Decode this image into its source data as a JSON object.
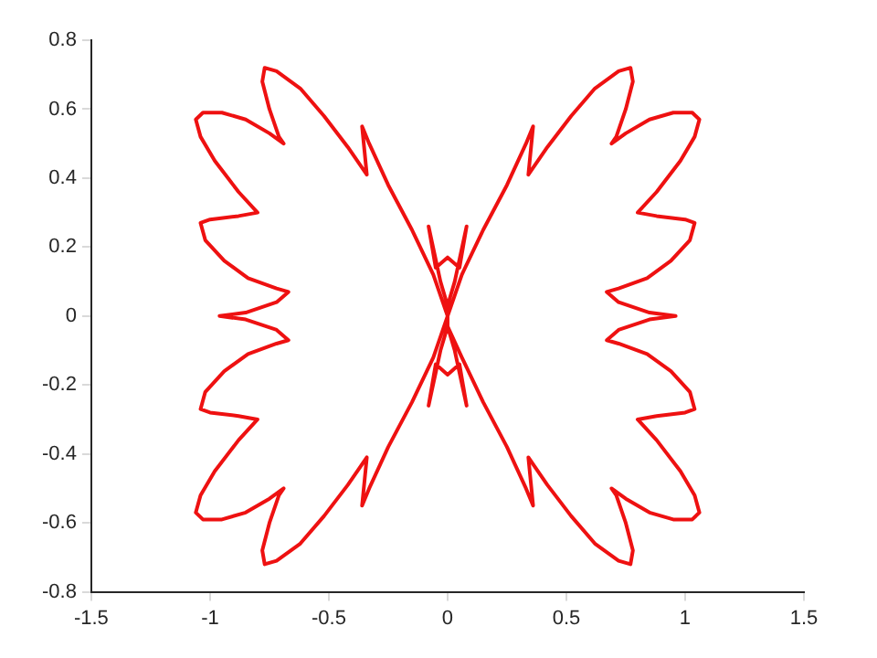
{
  "chart_data": {
    "type": "line",
    "grid": false,
    "legend": false,
    "xlim": [
      -1.5,
      1.5
    ],
    "xticks": [
      -1.5,
      -1,
      -0.5,
      0,
      0.5,
      1,
      1.5
    ],
    "ylim": [
      -0.8,
      0.8
    ],
    "yticks": [
      -0.8,
      -0.6,
      -0.4,
      -0.2,
      0,
      0.2,
      0.4,
      0.6,
      0.8
    ],
    "series": [
      {
        "color": "#ee1111",
        "x": [
          0,
          -0.06,
          -0.15,
          -0.25,
          -0.33,
          -0.36,
          -0.35,
          -0.34,
          -0.42,
          -0.52,
          -0.62,
          -0.72,
          -0.77,
          -0.78,
          -0.75,
          -0.71,
          -0.69,
          -0.75,
          -0.85,
          -0.95,
          -1.03,
          -1.06,
          -1.04,
          -0.98,
          -0.88,
          -0.8,
          -0.88,
          -1,
          -1.04,
          -1.02,
          -0.94,
          -0.84,
          -0.72,
          -0.67,
          -0.72,
          -0.85,
          -0.96,
          -0.85,
          -0.72,
          -0.67,
          -0.72,
          -0.84,
          -0.94,
          -1.02,
          -1.04,
          -1,
          -0.88,
          -0.8,
          -0.88,
          -0.98,
          -1.04,
          -1.06,
          -1.03,
          -0.95,
          -0.85,
          -0.75,
          -0.69,
          -0.71,
          -0.75,
          -0.78,
          -0.77,
          -0.72,
          -0.62,
          -0.52,
          -0.42,
          -0.34,
          -0.35,
          -0.36,
          -0.33,
          -0.25,
          -0.15,
          -0.06,
          0,
          0,
          -0.03,
          -0.08,
          -0.05,
          0,
          0.05,
          0.08,
          0.03,
          0,
          0.06,
          0.15,
          0.25,
          0.33,
          0.36,
          0.35,
          0.34,
          0.42,
          0.52,
          0.62,
          0.72,
          0.77,
          0.78,
          0.75,
          0.71,
          0.69,
          0.75,
          0.85,
          0.95,
          1.03,
          1.06,
          1.04,
          0.98,
          0.88,
          0.8,
          0.88,
          1,
          1.04,
          1.02,
          0.94,
          0.84,
          0.72,
          0.67,
          0.72,
          0.85,
          0.96,
          0.85,
          0.72,
          0.67,
          0.72,
          0.84,
          0.94,
          1.02,
          1.04,
          1,
          0.88,
          0.8,
          0.88,
          0.98,
          1.04,
          1.06,
          1.03,
          0.95,
          0.85,
          0.75,
          0.69,
          0.71,
          0.75,
          0.78,
          0.77,
          0.72,
          0.62,
          0.52,
          0.42,
          0.34,
          0.35,
          0.36,
          0.33,
          0.25,
          0.15,
          0.06,
          0,
          0,
          0.03,
          0.08,
          0.05,
          0,
          -0.05,
          -0.08,
          -0.03,
          0
        ],
        "values": [
          0,
          0.12,
          0.25,
          0.38,
          0.5,
          0.55,
          0.48,
          0.41,
          0.49,
          0.58,
          0.66,
          0.71,
          0.72,
          0.68,
          0.6,
          0.52,
          0.5,
          0.53,
          0.57,
          0.59,
          0.59,
          0.57,
          0.52,
          0.45,
          0.36,
          0.3,
          0.29,
          0.28,
          0.27,
          0.22,
          0.16,
          0.11,
          0.08,
          0.07,
          0.04,
          0.01,
          0,
          -0.01,
          -0.04,
          -0.07,
          -0.08,
          -0.11,
          -0.16,
          -0.22,
          -0.27,
          -0.28,
          -0.29,
          -0.3,
          -0.36,
          -0.45,
          -0.52,
          -0.57,
          -0.59,
          -0.59,
          -0.57,
          -0.53,
          -0.5,
          -0.52,
          -0.6,
          -0.68,
          -0.72,
          -0.71,
          -0.66,
          -0.58,
          -0.49,
          -0.41,
          -0.48,
          -0.55,
          -0.5,
          -0.38,
          -0.25,
          -0.12,
          0,
          -0.03,
          -0.1,
          -0.26,
          -0.14,
          -0.17,
          -0.14,
          -0.26,
          -0.1,
          -0.03,
          -0.12,
          -0.25,
          -0.38,
          -0.5,
          -0.55,
          -0.48,
          -0.41,
          -0.49,
          -0.58,
          -0.66,
          -0.71,
          -0.72,
          -0.68,
          -0.6,
          -0.52,
          -0.5,
          -0.53,
          -0.57,
          -0.59,
          -0.59,
          -0.57,
          -0.52,
          -0.45,
          -0.36,
          -0.3,
          -0.29,
          -0.28,
          -0.27,
          -0.22,
          -0.16,
          -0.11,
          -0.08,
          -0.07,
          -0.04,
          -0.01,
          0,
          0.01,
          0.04,
          0.07,
          0.08,
          0.11,
          0.16,
          0.22,
          0.27,
          0.28,
          0.29,
          0.3,
          0.36,
          0.45,
          0.52,
          0.57,
          0.59,
          0.59,
          0.57,
          0.53,
          0.5,
          0.52,
          0.6,
          0.68,
          0.72,
          0.71,
          0.66,
          0.58,
          0.49,
          0.41,
          0.48,
          0.55,
          0.5,
          0.38,
          0.25,
          0.12,
          0,
          0.03,
          0.1,
          0.26,
          0.14,
          0.17,
          0.14,
          0.26,
          0.1,
          0.03
        ]
      }
    ]
  }
}
